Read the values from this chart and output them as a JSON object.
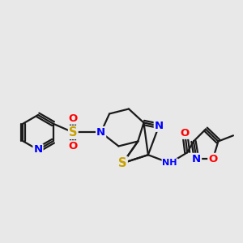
{
  "bg_color": "#e8e8e8",
  "bond_color": "#1a1a1a",
  "bond_width": 1.6,
  "atom_colors": {
    "N": "#0000ff",
    "S": "#c8a000",
    "O": "#ff0000",
    "C": "#1a1a1a",
    "H": "#444444"
  },
  "font_size": 8.5,
  "fig_size": [
    3.0,
    3.0
  ],
  "dpi": 100,
  "xlim": [
    0,
    10
  ],
  "ylim": [
    0,
    10
  ]
}
